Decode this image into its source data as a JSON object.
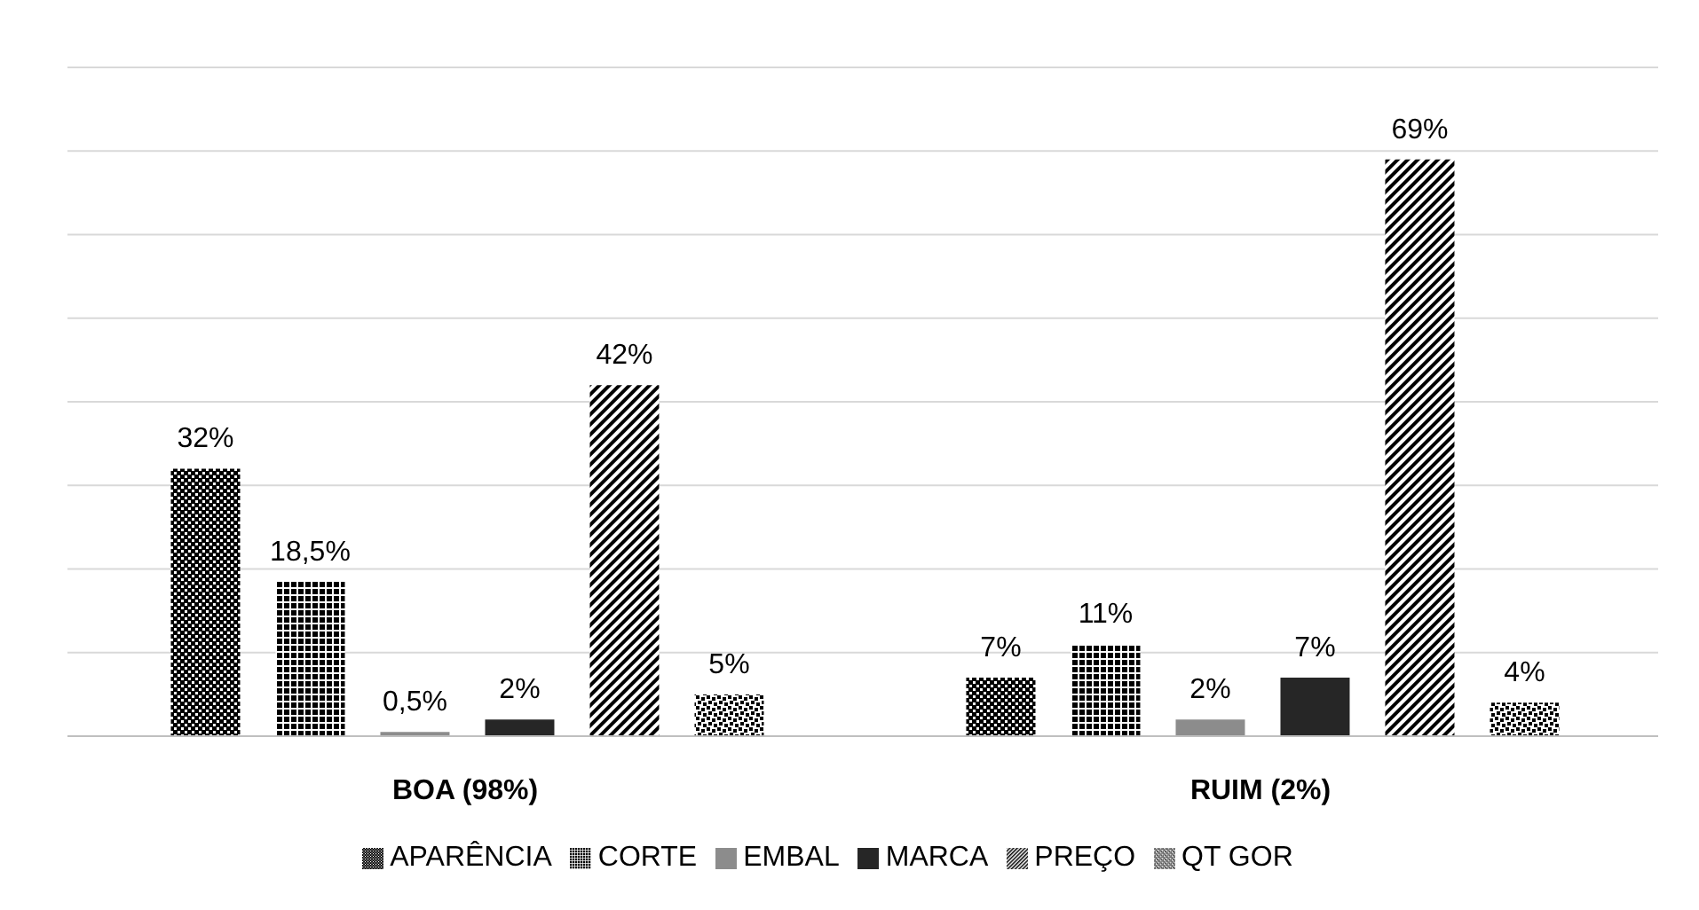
{
  "chart_data": {
    "type": "bar",
    "categories": [
      "BOA (98%)",
      "RUIM (2%)"
    ],
    "series": [
      {
        "name": "APARÊNCIA",
        "color": "#000000",
        "values": [
          32,
          7
        ],
        "value_labels": [
          "32%",
          "7%"
        ]
      },
      {
        "name": "CORTE",
        "color": "#000000",
        "values": [
          18.5,
          11
        ],
        "value_labels": [
          "18,5%",
          "11%"
        ]
      },
      {
        "name": "EMBAL",
        "color": "#8c8c8c",
        "values": [
          0.5,
          2
        ],
        "value_labels": [
          "0,5%",
          "2%"
        ]
      },
      {
        "name": "MARCA",
        "color": "#262626",
        "values": [
          2,
          7
        ],
        "value_labels": [
          "2%",
          "7%"
        ]
      },
      {
        "name": "PREÇO",
        "color": "#000000",
        "values": [
          42,
          69
        ],
        "value_labels": [
          "42%",
          "69%"
        ]
      },
      {
        "name": "QT GOR",
        "color": "#000000",
        "values": [
          5,
          4
        ],
        "value_labels": [
          "5%",
          "4%"
        ]
      }
    ],
    "ylim": [
      0,
      80
    ],
    "yticks": [
      {
        "value": 0,
        "label": null
      },
      {
        "value": 10,
        "label": null
      },
      {
        "value": 20,
        "label": null
      },
      {
        "value": 30,
        "label": null
      },
      {
        "value": 40,
        "label": null
      },
      {
        "value": 50,
        "label": null
      },
      {
        "value": 60,
        "label": null
      },
      {
        "value": 70,
        "label": null
      },
      {
        "value": 80,
        "label": null
      }
    ],
    "tick_labels": "x",
    "grid": "y",
    "legend": "bottom"
  }
}
